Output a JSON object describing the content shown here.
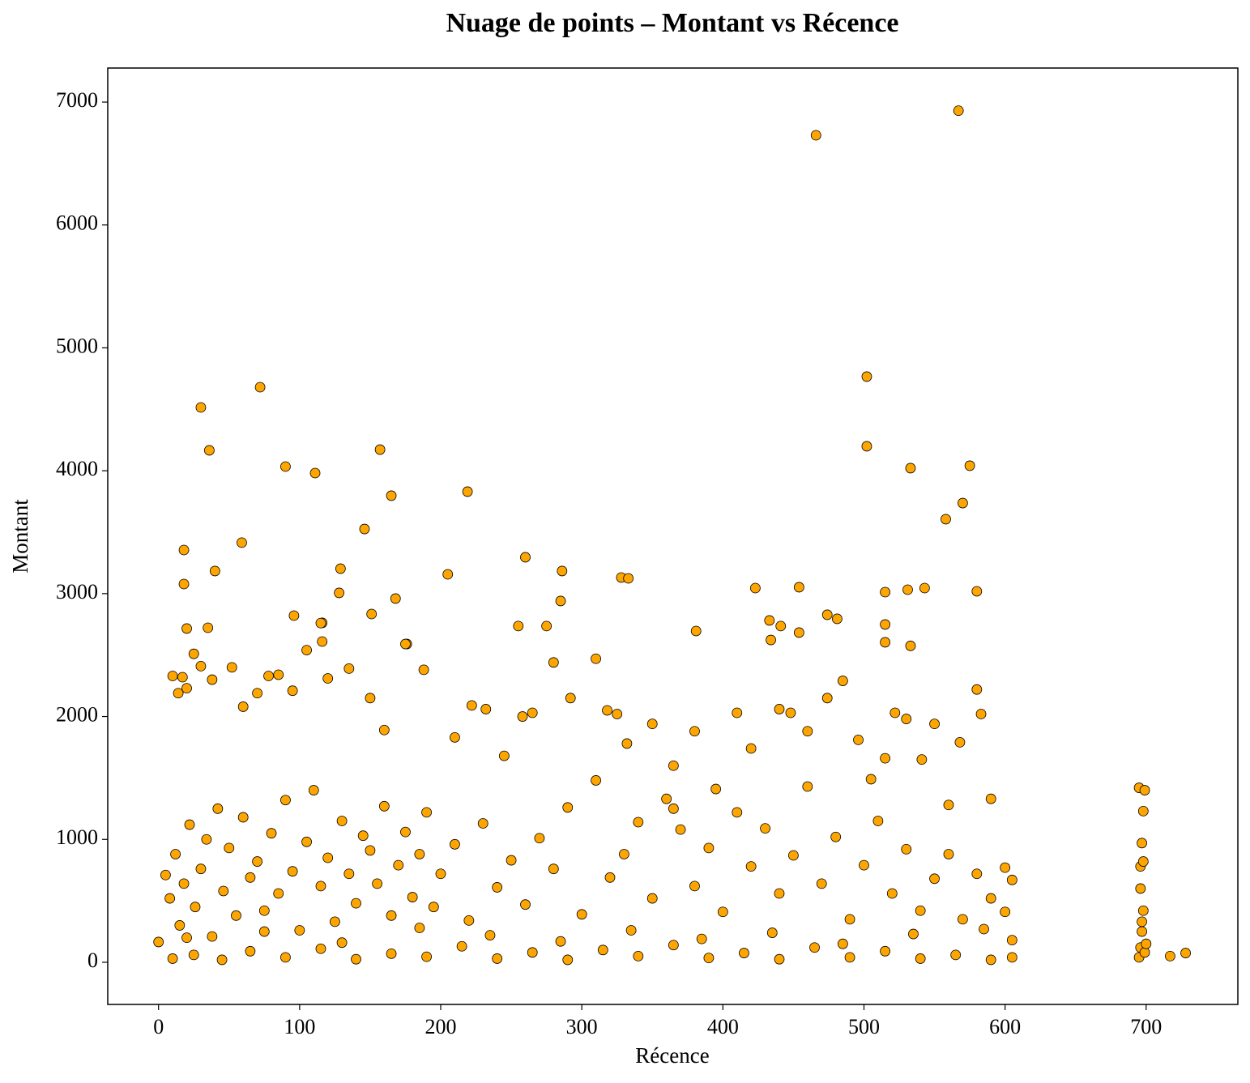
{
  "chart_data": {
    "type": "scatter",
    "title": "Nuage de points – Montant vs Récence",
    "x_label": "Récence",
    "y_label": "Montant",
    "color": "#ffa500",
    "edgecolor": "#000000",
    "xlim": [
      -36,
      765
    ],
    "xticks": [
      0,
      100,
      200,
      300,
      400,
      500,
      600,
      700
    ],
    "ylim": [
      -343,
      7277
    ],
    "yticks": [
      0,
      1000,
      2000,
      3000,
      4000,
      5000,
      6000,
      7000
    ],
    "x": [
      466,
      567,
      502,
      502,
      72,
      30,
      36,
      157,
      90,
      111,
      575,
      533,
      219,
      165,
      570,
      558,
      59,
      146,
      18,
      260,
      40,
      205,
      286,
      129,
      328,
      333,
      18,
      128,
      423,
      454,
      543,
      515,
      531,
      580,
      168,
      285,
      96,
      474,
      481,
      151,
      255,
      275,
      35,
      20,
      381,
      454,
      433,
      441,
      434,
      116,
      515,
      515,
      533,
      176,
      116,
      10,
      14,
      17,
      20,
      25,
      30,
      38,
      52,
      60,
      70,
      78,
      85,
      95,
      105,
      115,
      120,
      135,
      150,
      160,
      175,
      188,
      210,
      222,
      232,
      245,
      258,
      265,
      280,
      292,
      310,
      318,
      325,
      332,
      350,
      365,
      380,
      395,
      410,
      420,
      440,
      448,
      460,
      474,
      485,
      496,
      505,
      515,
      522,
      530,
      541,
      550,
      560,
      568,
      580,
      583,
      590,
      600,
      605,
      5,
      8,
      12,
      15,
      18,
      22,
      26,
      30,
      34,
      38,
      42,
      46,
      50,
      55,
      60,
      65,
      70,
      75,
      80,
      85,
      90,
      95,
      100,
      105,
      110,
      115,
      120,
      125,
      130,
      135,
      140,
      145,
      150,
      155,
      160,
      165,
      170,
      175,
      180,
      185,
      190,
      195,
      200,
      210,
      220,
      230,
      240,
      250,
      260,
      270,
      280,
      290,
      300,
      310,
      320,
      330,
      340,
      350,
      360,
      365,
      370,
      380,
      390,
      400,
      410,
      420,
      430,
      440,
      450,
      460,
      470,
      480,
      490,
      500,
      510,
      520,
      530,
      540,
      550,
      560,
      570,
      580,
      590,
      600,
      605,
      0,
      10,
      25,
      45,
      65,
      90,
      115,
      140,
      165,
      190,
      215,
      240,
      265,
      290,
      315,
      340,
      365,
      390,
      415,
      440,
      465,
      490,
      515,
      540,
      565,
      590,
      605,
      20,
      75,
      130,
      185,
      235,
      285,
      335,
      385,
      435,
      485,
      535,
      585,
      695,
      696,
      697,
      698,
      699,
      696,
      697,
      698,
      695,
      699,
      698,
      696,
      700,
      697,
      717,
      728
    ],
    "values": [
      6730,
      6930,
      4766,
      4199,
      4680,
      4515,
      4166,
      4172,
      4034,
      3981,
      4041,
      4021,
      3830,
      3797,
      3737,
      3606,
      3415,
      3526,
      3355,
      3296,
      3184,
      3157,
      3184,
      3203,
      3131,
      3124,
      3078,
      3006,
      3045,
      3052,
      3045,
      3012,
      3032,
      3019,
      2960,
      2940,
      2821,
      2828,
      2795,
      2834,
      2736,
      2736,
      2722,
      2716,
      2696,
      2683,
      2782,
      2736,
      2623,
      2762,
      2749,
      2604,
      2575,
      2590,
      2610,
      2330,
      2190,
      2320,
      2230,
      2510,
      2410,
      2300,
      2400,
      2080,
      2190,
      2330,
      2340,
      2210,
      2540,
      2760,
      2310,
      2390,
      2150,
      1890,
      2590,
      2380,
      1830,
      2090,
      2060,
      1680,
      2000,
      2030,
      2440,
      2150,
      2470,
      2050,
      2020,
      1780,
      1940,
      1600,
      1880,
      1410,
      2030,
      1740,
      2060,
      2030,
      1880,
      2150,
      2290,
      1810,
      1490,
      1660,
      2030,
      1980,
      1650,
      1940,
      1280,
      1790,
      2220,
      2020,
      1330,
      770,
      670,
      710,
      520,
      880,
      300,
      640,
      1120,
      450,
      760,
      1000,
      210,
      1250,
      580,
      930,
      380,
      1180,
      690,
      820,
      420,
      1050,
      560,
      1320,
      740,
      260,
      980,
      1400,
      620,
      850,
      330,
      1150,
      720,
      480,
      1030,
      910,
      640,
      1270,
      380,
      790,
      1060,
      530,
      880,
      1220,
      450,
      720,
      960,
      340,
      1130,
      610,
      830,
      470,
      1010,
      760,
      1260,
      390,
      1480,
      690,
      880,
      1140,
      520,
      1330,
      1250,
      1080,
      620,
      930,
      410,
      1220,
      780,
      1090,
      560,
      870,
      1430,
      640,
      1020,
      350,
      790,
      1150,
      560,
      920,
      420,
      680,
      880,
      350,
      720,
      520,
      410,
      180,
      165,
      30,
      60,
      20,
      90,
      40,
      110,
      25,
      70,
      45,
      130,
      30,
      80,
      20,
      100,
      50,
      140,
      35,
      75,
      25,
      120,
      40,
      90,
      30,
      60,
      20,
      40,
      200,
      250,
      160,
      280,
      220,
      170,
      260,
      190,
      240,
      150,
      230,
      270,
      40,
      120,
      250,
      420,
      80,
      780,
      970,
      1230,
      1420,
      1400,
      820,
      600,
      150,
      330,
      50,
      75
    ]
  }
}
